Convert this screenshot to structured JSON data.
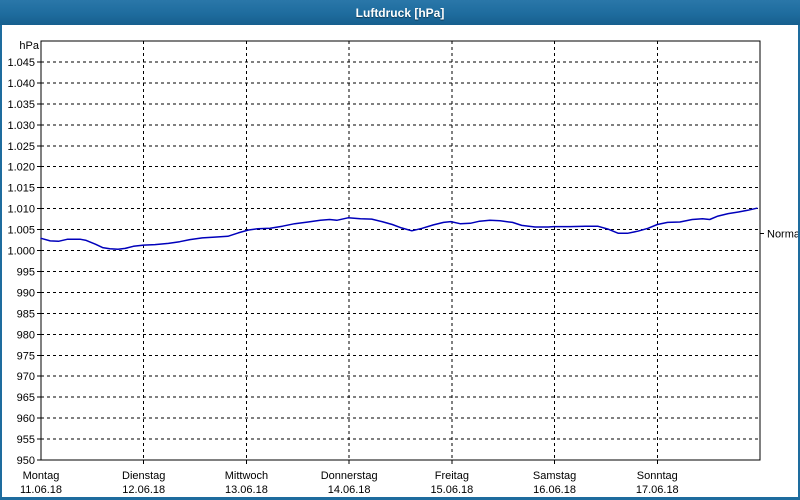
{
  "window": {
    "title": "Luftdruck [hPa]",
    "titlebar_color": "#1e6c9e",
    "title_text_color": "#ffffff"
  },
  "chart_data": {
    "type": "line",
    "title": "Luftdruck [hPa]",
    "ylabel": "hPa",
    "xlabel": "",
    "grid": "dashed",
    "legend": "none",
    "line_color": "#0000bb",
    "grid_color": "#000000",
    "y_axis": {
      "range": [
        950,
        1050
      ],
      "tick_step": 5,
      "unit_label": "hPa",
      "tick_labels": [
        "950",
        "955",
        "960",
        "965",
        "970",
        "975",
        "980",
        "985",
        "990",
        "995",
        "1.000",
        "1.005",
        "1.010",
        "1.015",
        "1.020",
        "1.025",
        "1.030",
        "1.035",
        "1.040",
        "1.045"
      ]
    },
    "x_axis": {
      "days": [
        {
          "name": "Montag",
          "date": "11.06.18"
        },
        {
          "name": "Dienstag",
          "date": "12.06.18"
        },
        {
          "name": "Mittwoch",
          "date": "13.06.18"
        },
        {
          "name": "Donnerstag",
          "date": "14.06.18"
        },
        {
          "name": "Freitag",
          "date": "15.06.18"
        },
        {
          "name": "Samstag",
          "date": "16.06.18"
        },
        {
          "name": "Sonntag",
          "date": "17.06.18"
        }
      ]
    },
    "normal_marker": {
      "label": "Normal",
      "value": 1004
    },
    "series": [
      {
        "name": "Luftdruck",
        "color": "#0000bb",
        "x_unit": "days_from_start",
        "points": [
          [
            0.0,
            1002.9
          ],
          [
            0.09,
            1002.3
          ],
          [
            0.17,
            1002.2
          ],
          [
            0.26,
            1002.7
          ],
          [
            0.38,
            1002.7
          ],
          [
            0.44,
            1002.4
          ],
          [
            0.53,
            1001.5
          ],
          [
            0.6,
            1000.7
          ],
          [
            0.67,
            1000.4
          ],
          [
            0.75,
            1000.3
          ],
          [
            0.82,
            1000.5
          ],
          [
            0.9,
            1001.0
          ],
          [
            1.0,
            1001.3
          ],
          [
            1.11,
            1001.4
          ],
          [
            1.24,
            1001.7
          ],
          [
            1.35,
            1002.1
          ],
          [
            1.45,
            1002.6
          ],
          [
            1.57,
            1003.0
          ],
          [
            1.69,
            1003.2
          ],
          [
            1.82,
            1003.4
          ],
          [
            1.92,
            1004.2
          ],
          [
            2.02,
            1004.9
          ],
          [
            2.11,
            1005.2
          ],
          [
            2.23,
            1005.3
          ],
          [
            2.35,
            1005.8
          ],
          [
            2.47,
            1006.4
          ],
          [
            2.6,
            1006.8
          ],
          [
            2.72,
            1007.2
          ],
          [
            2.81,
            1007.4
          ],
          [
            2.88,
            1007.2
          ],
          [
            2.99,
            1007.8
          ],
          [
            3.11,
            1007.6
          ],
          [
            3.22,
            1007.5
          ],
          [
            3.32,
            1006.9
          ],
          [
            3.42,
            1006.2
          ],
          [
            3.51,
            1005.4
          ],
          [
            3.61,
            1004.7
          ],
          [
            3.71,
            1005.3
          ],
          [
            3.82,
            1006.1
          ],
          [
            3.92,
            1006.7
          ],
          [
            3.99,
            1006.9
          ],
          [
            4.08,
            1006.4
          ],
          [
            4.18,
            1006.5
          ],
          [
            4.27,
            1007.0
          ],
          [
            4.37,
            1007.2
          ],
          [
            4.47,
            1007.1
          ],
          [
            4.59,
            1006.7
          ],
          [
            4.68,
            1006.0
          ],
          [
            4.81,
            1005.6
          ],
          [
            4.94,
            1005.6
          ],
          [
            4.99,
            1005.7
          ],
          [
            5.15,
            1005.7
          ],
          [
            5.3,
            1005.8
          ],
          [
            5.42,
            1005.8
          ],
          [
            5.52,
            1005.1
          ],
          [
            5.62,
            1004.1
          ],
          [
            5.71,
            1004.1
          ],
          [
            5.81,
            1004.6
          ],
          [
            5.91,
            1005.3
          ],
          [
            6.0,
            1006.2
          ],
          [
            6.1,
            1006.7
          ],
          [
            6.22,
            1006.8
          ],
          [
            6.34,
            1007.4
          ],
          [
            6.44,
            1007.6
          ],
          [
            6.51,
            1007.4
          ],
          [
            6.59,
            1008.2
          ],
          [
            6.69,
            1008.8
          ],
          [
            6.79,
            1009.2
          ],
          [
            6.88,
            1009.6
          ],
          [
            6.97,
            1010.1
          ]
        ]
      }
    ]
  }
}
